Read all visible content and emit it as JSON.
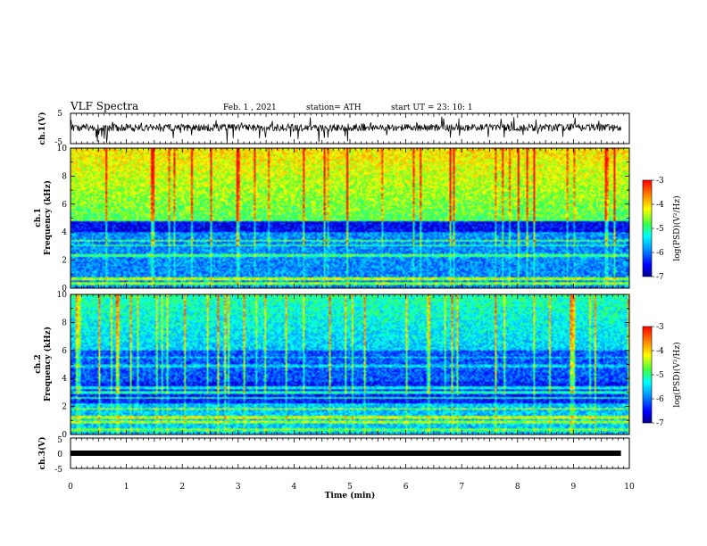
{
  "header": {
    "title": "VLF Spectra",
    "date": "Feb. 1 , 2021",
    "station": "station= ATH",
    "start": "start  UT  =   23: 10: 1"
  },
  "chart_data": [
    {
      "type": "line",
      "panel": "ch1-waveform",
      "ylabel": "ch.1(V)",
      "ylim": [
        -5,
        5
      ],
      "yticks": [
        "5",
        "-5"
      ],
      "xlim": [
        0,
        10
      ],
      "description_values": {
        "baseline": 0.3,
        "noise_amplitude": 1.2
      }
    },
    {
      "type": "heatmap",
      "panel": "ch1-spectrogram",
      "ylabel_top": "ch.1",
      "ylabel": "Frequency  (kHz)",
      "ylim": [
        0,
        10
      ],
      "yticks": [
        "0",
        "2",
        "4",
        "6",
        "8",
        "10"
      ],
      "xlim": [
        0,
        10
      ],
      "colorbar": {
        "label": "log(PSD)(V²/Hz)",
        "range": [
          -7,
          -3
        ],
        "ticks": [
          "-3",
          "-4",
          "-5",
          "-6",
          "-7"
        ]
      }
    },
    {
      "type": "heatmap",
      "panel": "ch2-spectrogram",
      "ylabel_top": "ch.2",
      "ylabel": "Frequency  (kHz)",
      "ylim": [
        0,
        10
      ],
      "yticks": [
        "0",
        "2",
        "4",
        "6",
        "8",
        "10"
      ],
      "xlim": [
        0,
        10
      ],
      "colorbar": {
        "label": "log(PSD)(V²/Hz)",
        "range": [
          -7,
          -3
        ],
        "ticks": [
          "-3",
          "-4",
          "-5",
          "-6",
          "-7"
        ]
      }
    },
    {
      "type": "line",
      "panel": "ch3-waveform",
      "ylabel": "ch.3(V)",
      "ylim": [
        -5,
        5
      ],
      "yticks": [
        "5",
        "0",
        "-5"
      ],
      "xlim": [
        0,
        10
      ],
      "xticks": [
        "0",
        "1",
        "2",
        "3",
        "4",
        "5",
        "6",
        "7",
        "8",
        "9",
        "10"
      ],
      "xlabel": "Time  (min)",
      "description_values": {
        "baseline": 0
      }
    }
  ]
}
